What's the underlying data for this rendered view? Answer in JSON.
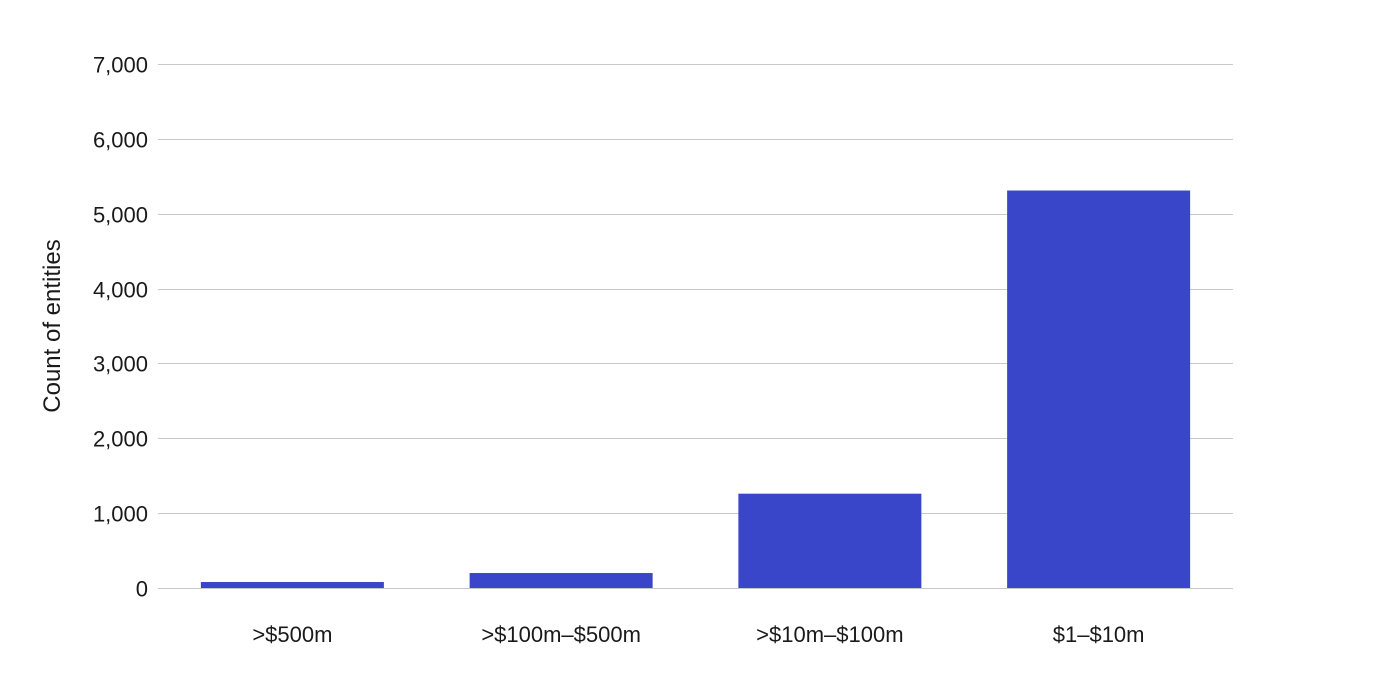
{
  "chart_data": {
    "type": "bar",
    "title": "",
    "xlabel": "",
    "ylabel": "Count of entities",
    "categories": [
      ">$500m",
      ">$100m–$500m",
      ">$10m–$100m",
      "$1–$10m"
    ],
    "values": [
      80,
      200,
      1260,
      5310
    ],
    "ylim": [
      0,
      7000
    ],
    "yticks": [
      0,
      1000,
      2000,
      3000,
      4000,
      5000,
      6000,
      7000
    ],
    "ytick_labels": [
      "0",
      "1,000",
      "2,000",
      "3,000",
      "4,000",
      "5,000",
      "6,000",
      "7,000"
    ],
    "grid": true,
    "legend": "none",
    "bar_color": "#3a46c9",
    "grid_color": "#c8c8c8"
  }
}
